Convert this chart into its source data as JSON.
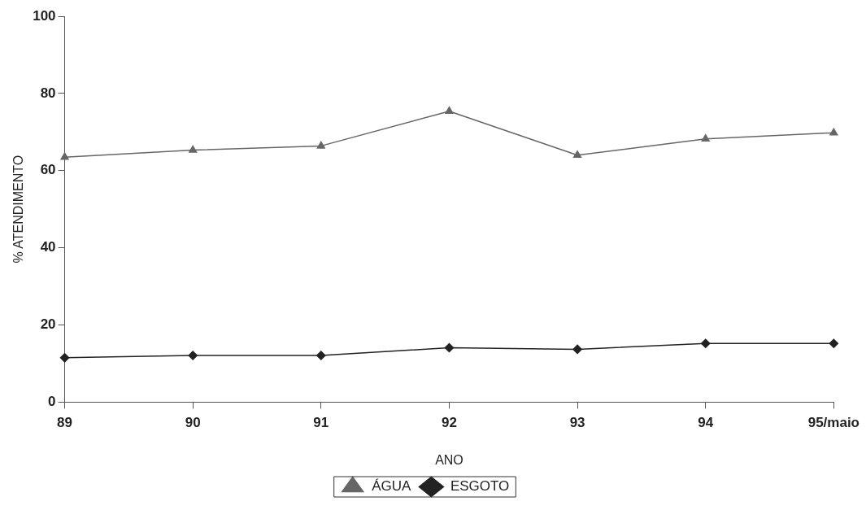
{
  "chart_data": {
    "type": "line",
    "xlabel": "ANO",
    "ylabel": "% ATENDIMENTO",
    "categories": [
      "89",
      "90",
      "91",
      "92",
      "93",
      "94",
      "95/maio"
    ],
    "series": [
      {
        "name": "ÁGUA",
        "color": "#666666",
        "marker": "triangle",
        "values": [
          63.5,
          65.3,
          66.4,
          75.4,
          64.0,
          68.2,
          69.8
        ]
      },
      {
        "name": "ESGOTO",
        "color": "#222222",
        "marker": "diamond",
        "values": [
          11.5,
          12.1,
          12.1,
          14.1,
          13.7,
          15.2,
          15.2
        ]
      }
    ],
    "ylim": [
      0,
      100
    ],
    "yticks": [
      0,
      20,
      40,
      60,
      80,
      100
    ],
    "grid": false,
    "legend": "bottom"
  }
}
